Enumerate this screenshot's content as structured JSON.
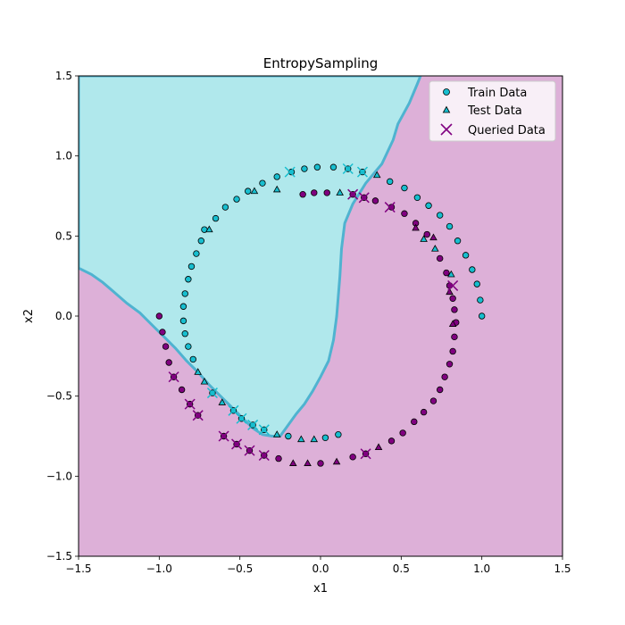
{
  "chart_data": {
    "type": "scatter",
    "title": "EntropySampling",
    "xlabel": "x1",
    "ylabel": "x2",
    "xlim": [
      -1.5,
      1.5
    ],
    "ylim": [
      -1.5,
      1.5
    ],
    "xticks": [
      "−1.5",
      "−1.0",
      "−0.5",
      "0.0",
      "0.5",
      "1.0",
      "1.5"
    ],
    "yticks": [
      "−1.5",
      "−1.0",
      "−0.5",
      "0.0",
      "0.5",
      "1.0",
      "1.5"
    ],
    "xtick_values": [
      -1.5,
      -1.0,
      -0.5,
      0.0,
      0.5,
      1.0,
      1.5
    ],
    "ytick_values": [
      -1.5,
      -1.0,
      -0.5,
      0.0,
      0.5,
      1.0,
      1.5
    ],
    "grid": false,
    "legend_position": "top-right",
    "colors": {
      "class0": "#17becf",
      "class1": "#800080",
      "region0": "#b0e8ec",
      "region1": "#ddb0d8",
      "boundary": "#4fb3d0",
      "queried": "#800080"
    },
    "legend": [
      "Train Data",
      "Test Data",
      "Queried Data"
    ],
    "decision_region_class0": [
      [
        -1.5,
        0.3
      ],
      [
        -1.42,
        0.26
      ],
      [
        -1.35,
        0.21
      ],
      [
        -1.28,
        0.15
      ],
      [
        -1.2,
        0.08
      ],
      [
        -1.12,
        0.02
      ],
      [
        -1.05,
        -0.05
      ],
      [
        -0.97,
        -0.13
      ],
      [
        -0.9,
        -0.2
      ],
      [
        -0.83,
        -0.28
      ],
      [
        -0.76,
        -0.35
      ],
      [
        -0.69,
        -0.43
      ],
      [
        -0.62,
        -0.5
      ],
      [
        -0.55,
        -0.57
      ],
      [
        -0.48,
        -0.64
      ],
      [
        -0.42,
        -0.7
      ],
      [
        -0.36,
        -0.74
      ],
      [
        -0.3,
        -0.75
      ],
      [
        -0.25,
        -0.75
      ],
      [
        -0.2,
        -0.68
      ],
      [
        -0.15,
        -0.61
      ],
      [
        -0.1,
        -0.55
      ],
      [
        -0.05,
        -0.47
      ],
      [
        0.0,
        -0.38
      ],
      [
        0.05,
        -0.28
      ],
      [
        0.08,
        -0.15
      ],
      [
        0.1,
        0.0
      ],
      [
        0.12,
        0.25
      ],
      [
        0.13,
        0.42
      ],
      [
        0.15,
        0.58
      ],
      [
        0.2,
        0.7
      ],
      [
        0.28,
        0.83
      ],
      [
        0.38,
        0.95
      ],
      [
        0.45,
        1.1
      ],
      [
        0.48,
        1.2
      ],
      [
        0.55,
        1.33
      ],
      [
        0.6,
        1.45
      ],
      [
        0.62,
        1.5
      ],
      [
        -1.5,
        1.5
      ]
    ],
    "train_class0": [
      [
        -0.18,
        0.9
      ],
      [
        -0.1,
        0.92
      ],
      [
        -0.02,
        0.93
      ],
      [
        0.08,
        0.93
      ],
      [
        0.17,
        0.92
      ],
      [
        0.26,
        0.9
      ],
      [
        0.43,
        0.84
      ],
      [
        0.52,
        0.8
      ],
      [
        0.6,
        0.74
      ],
      [
        0.67,
        0.69
      ],
      [
        0.74,
        0.63
      ],
      [
        0.8,
        0.56
      ],
      [
        0.85,
        0.47
      ],
      [
        0.9,
        0.38
      ],
      [
        0.94,
        0.29
      ],
      [
        0.97,
        0.2
      ],
      [
        0.99,
        0.1
      ],
      [
        1.0,
        0.0
      ],
      [
        -0.27,
        0.87
      ],
      [
        -0.36,
        0.83
      ],
      [
        -0.45,
        0.78
      ],
      [
        -0.52,
        0.73
      ],
      [
        -0.59,
        0.68
      ],
      [
        -0.65,
        0.61
      ],
      [
        -0.72,
        0.54
      ],
      [
        -0.74,
        0.47
      ],
      [
        -0.77,
        0.39
      ],
      [
        -0.8,
        0.31
      ],
      [
        -0.82,
        0.23
      ],
      [
        -0.84,
        0.14
      ],
      [
        -0.85,
        0.06
      ],
      [
        -0.85,
        -0.03
      ],
      [
        -0.84,
        -0.11
      ],
      [
        -0.82,
        -0.19
      ],
      [
        -0.79,
        -0.27
      ],
      [
        -0.67,
        -0.48
      ],
      [
        -0.54,
        -0.59
      ],
      [
        -0.49,
        -0.64
      ],
      [
        -0.42,
        -0.68
      ],
      [
        -0.35,
        -0.71
      ],
      [
        -0.2,
        -0.75
      ],
      [
        0.03,
        -0.76
      ],
      [
        0.11,
        -0.74
      ]
    ],
    "test_class0": [
      [
        0.12,
        0.77
      ],
      [
        0.35,
        0.88
      ],
      [
        0.64,
        0.48
      ],
      [
        0.71,
        0.42
      ],
      [
        0.81,
        0.26
      ],
      [
        -0.27,
        0.79
      ],
      [
        -0.41,
        0.78
      ],
      [
        -0.69,
        0.54
      ],
      [
        -0.76,
        -0.35
      ],
      [
        -0.72,
        -0.41
      ],
      [
        -0.61,
        -0.54
      ],
      [
        -0.27,
        -0.74
      ],
      [
        -0.12,
        -0.77
      ],
      [
        -0.04,
        -0.77
      ]
    ],
    "train_class1": [
      [
        -1.0,
        0.0
      ],
      [
        -0.98,
        -0.1
      ],
      [
        -0.96,
        -0.19
      ],
      [
        -0.94,
        -0.29
      ],
      [
        -0.91,
        -0.38
      ],
      [
        -0.86,
        -0.46
      ],
      [
        -0.81,
        -0.55
      ],
      [
        -0.76,
        -0.62
      ],
      [
        -0.6,
        -0.75
      ],
      [
        -0.52,
        -0.8
      ],
      [
        -0.44,
        -0.84
      ],
      [
        -0.35,
        -0.87
      ],
      [
        -0.26,
        -0.89
      ],
      [
        0.0,
        -0.92
      ],
      [
        0.2,
        -0.88
      ],
      [
        0.28,
        -0.86
      ],
      [
        0.44,
        -0.78
      ],
      [
        0.51,
        -0.73
      ],
      [
        0.58,
        -0.66
      ],
      [
        0.64,
        -0.6
      ],
      [
        0.7,
        -0.53
      ],
      [
        0.74,
        -0.46
      ],
      [
        0.77,
        -0.38
      ],
      [
        0.8,
        -0.3
      ],
      [
        0.82,
        -0.22
      ],
      [
        0.83,
        -0.13
      ],
      [
        0.84,
        -0.04
      ],
      [
        0.83,
        0.04
      ],
      [
        0.82,
        0.11
      ],
      [
        0.8,
        0.19
      ],
      [
        0.78,
        0.27
      ],
      [
        0.74,
        0.36
      ],
      [
        0.66,
        0.51
      ],
      [
        0.59,
        0.58
      ],
      [
        0.52,
        0.64
      ],
      [
        0.44,
        0.68
      ],
      [
        0.34,
        0.72
      ],
      [
        0.27,
        0.74
      ],
      [
        0.2,
        0.76
      ],
      [
        0.04,
        0.77
      ],
      [
        -0.04,
        0.77
      ],
      [
        -0.11,
        0.76
      ]
    ],
    "test_class1": [
      [
        -0.17,
        -0.92
      ],
      [
        -0.08,
        -0.92
      ],
      [
        0.1,
        -0.91
      ],
      [
        0.36,
        -0.82
      ],
      [
        0.82,
        -0.05
      ],
      [
        0.8,
        0.15
      ],
      [
        0.7,
        0.49
      ],
      [
        0.59,
        0.55
      ]
    ],
    "queried_class0": [
      [
        -0.19,
        0.9
      ],
      [
        0.17,
        0.92
      ],
      [
        0.26,
        0.9
      ],
      [
        -0.67,
        -0.48
      ],
      [
        -0.54,
        -0.59
      ],
      [
        -0.49,
        -0.64
      ],
      [
        -0.42,
        -0.68
      ],
      [
        -0.35,
        -0.71
      ]
    ],
    "queried_class1": [
      [
        -0.91,
        -0.38
      ],
      [
        -0.81,
        -0.55
      ],
      [
        -0.76,
        -0.62
      ],
      [
        -0.6,
        -0.75
      ],
      [
        -0.52,
        -0.8
      ],
      [
        -0.44,
        -0.84
      ],
      [
        -0.35,
        -0.87
      ],
      [
        0.28,
        -0.86
      ],
      [
        0.82,
        0.19
      ],
      [
        0.43,
        0.68
      ],
      [
        0.27,
        0.74
      ],
      [
        0.2,
        0.76
      ]
    ]
  }
}
